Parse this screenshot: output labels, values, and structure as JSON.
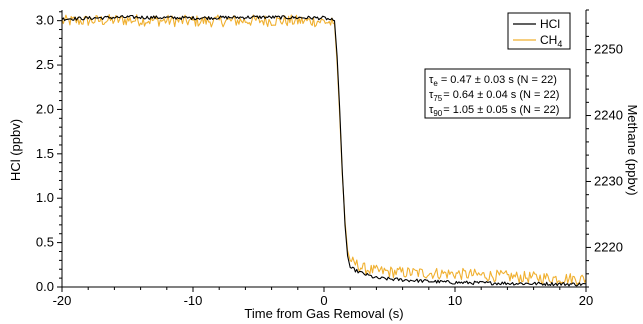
{
  "chart_data": {
    "type": "line",
    "xlabel": "Time from Gas Removal (s)",
    "ylabel_left": "HCl (ppbv)",
    "ylabel_right": "Methane (ppbv)",
    "xlim": [
      -20,
      20
    ],
    "ylim_left": [
      0.0,
      3.12
    ],
    "ylim_right": [
      2214,
      2256
    ],
    "x_ticks": [
      -20,
      -10,
      0,
      10,
      20
    ],
    "y_left_ticks": [
      "0.0",
      "0.5",
      "1.0",
      "1.5",
      "2.0",
      "2.5",
      "3.0"
    ],
    "y_right_ticks": [
      "2220",
      "2230",
      "2240",
      "2250"
    ],
    "grid": false,
    "legend_position": "top-right",
    "series": [
      {
        "name": "HCl",
        "axis": "left",
        "color": "#000000",
        "x": [
          -20,
          -15,
          -10,
          -5,
          0,
          0.8,
          1.0,
          1.2,
          1.4,
          1.6,
          1.8,
          2.0,
          2.5,
          3,
          4,
          6,
          10,
          15,
          20
        ],
        "y": [
          3.02,
          3.04,
          3.03,
          3.04,
          3.03,
          3.0,
          2.6,
          2.0,
          1.3,
          0.7,
          0.35,
          0.22,
          0.18,
          0.15,
          0.1,
          0.08,
          0.05,
          0.04,
          0.03
        ]
      },
      {
        "name": "CH",
        "name_sub": "4",
        "axis": "right",
        "color": "#f0b030",
        "x": [
          -20,
          -15,
          -10,
          -5,
          0,
          0.8,
          1.0,
          1.2,
          1.4,
          1.6,
          1.8,
          2.0,
          2.5,
          3,
          4,
          6,
          10,
          15,
          20
        ],
        "y": [
          2254.3,
          2254.5,
          2254.3,
          2254.4,
          2254.3,
          2253.9,
          2248.0,
          2240.0,
          2231.0,
          2224.0,
          2219.5,
          2218.0,
          2217.4,
          2216.8,
          2216.4,
          2216.2,
          2216.0,
          2215.5,
          2215.2
        ]
      }
    ],
    "annotation": [
      {
        "sym": "τ",
        "sub": "e",
        "text": "= 0.47 ± 0.03 s (N = 22)"
      },
      {
        "sym": "τ",
        "sub": "75",
        "text": "= 0.64 ± 0.04 s (N = 22)"
      },
      {
        "sym": "τ",
        "sub": "90",
        "text": "= 1.05 ± 0.05 s (N = 22)"
      }
    ]
  }
}
